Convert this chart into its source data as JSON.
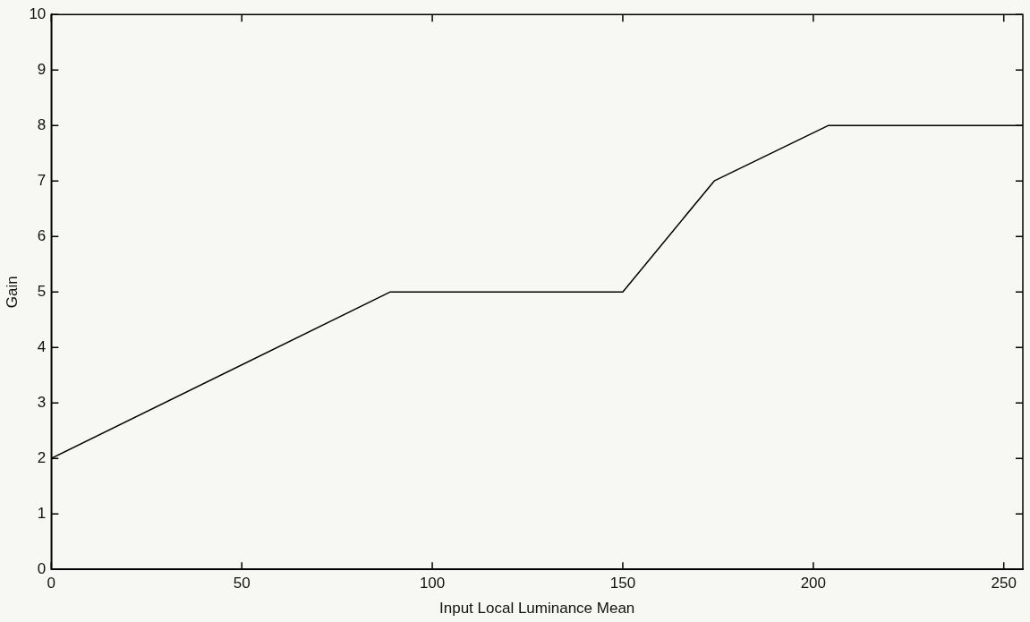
{
  "chart_data": {
    "type": "line",
    "xlabel": "Input Local Luminance Mean",
    "ylabel": "Gain",
    "x": [
      0,
      89,
      150,
      174,
      204,
      255
    ],
    "series": [
      {
        "color": "#000000",
        "values": [
          2,
          5,
          5,
          7,
          8,
          8
        ]
      }
    ],
    "xlim": [
      0,
      255
    ],
    "xticks": [
      0,
      50,
      100,
      150,
      200,
      250
    ],
    "ylim": [
      0,
      10
    ],
    "yticks": [
      0,
      1,
      2,
      3,
      4,
      5,
      6,
      7,
      8,
      9,
      10
    ],
    "grid": false,
    "legend": false,
    "marker": "none",
    "line_style": "solid"
  }
}
